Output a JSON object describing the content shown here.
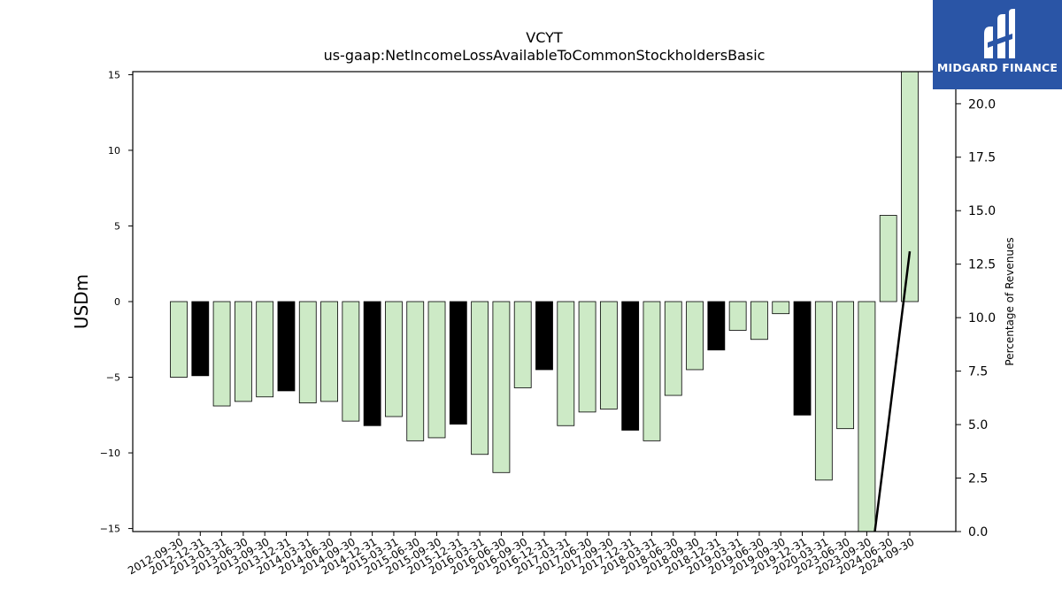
{
  "brand": {
    "name": "MIDGARD FINANCE"
  },
  "chart_data": {
    "type": "bar",
    "title": "VCYT",
    "subtitle": "us-gaap:NetIncomeLossAvailableToCommonStockholdersBasic",
    "ylabel": "USDm",
    "y2label": "Percentage of Revenues",
    "ylim": [
      -15.2,
      15.2
    ],
    "y2lim": [
      0,
      21.5
    ],
    "yticks": [
      -15,
      -10,
      -5,
      0,
      5,
      10,
      15
    ],
    "y2ticks": [
      "0.0",
      "2.5",
      "5.0",
      "7.5",
      "10.0",
      "12.5",
      "15.0",
      "17.5",
      "20.0"
    ],
    "categories": [
      "2012-09-30",
      "2012-12-31",
      "2013-03-31",
      "2013-06-30",
      "2013-09-30",
      "2013-12-31",
      "2014-03-31",
      "2014-06-30",
      "2014-09-30",
      "2014-12-31",
      "2015-03-31",
      "2015-06-30",
      "2015-09-30",
      "2015-12-31",
      "2016-03-31",
      "2016-06-30",
      "2016-09-30",
      "2016-12-31",
      "2017-03-31",
      "2017-06-30",
      "2017-09-30",
      "2017-12-31",
      "2018-03-31",
      "2018-06-30",
      "2018-09-30",
      "2018-12-31",
      "2019-03-31",
      "2019-06-30",
      "2019-09-30",
      "2019-12-31",
      "2020-03-31",
      "2023-06-30",
      "2023-09-30",
      "2024-06-30",
      "2024-09-30"
    ],
    "values": [
      -5.0,
      -4.9,
      -6.9,
      -6.6,
      -6.3,
      -5.9,
      -6.7,
      -6.6,
      -7.9,
      -8.2,
      -7.6,
      -9.2,
      -9.0,
      -8.1,
      -10.1,
      -11.3,
      -5.7,
      -4.5,
      -8.2,
      -7.3,
      -7.1,
      -8.5,
      -9.2,
      -6.2,
      -4.5,
      -3.2,
      -1.9,
      -2.5,
      -0.8,
      -7.5,
      -11.8,
      -8.4,
      -15.5,
      5.7,
      15.5
    ],
    "highlight": [
      false,
      true,
      false,
      false,
      false,
      true,
      false,
      false,
      false,
      true,
      false,
      false,
      false,
      true,
      false,
      false,
      false,
      true,
      false,
      false,
      false,
      true,
      false,
      false,
      false,
      true,
      false,
      false,
      false,
      true,
      false,
      false,
      false,
      false,
      false
    ],
    "colors": {
      "bar": "#cdeac6",
      "highlight": "#000000",
      "edge": "#000000",
      "line": "#000000"
    },
    "line_series": {
      "categories": [
        "2023-09-30",
        "2024-06-30",
        "2024-09-30"
      ],
      "values": [
        -3.0,
        5.0,
        13.1
      ]
    },
    "grid": false,
    "legend": "none"
  }
}
